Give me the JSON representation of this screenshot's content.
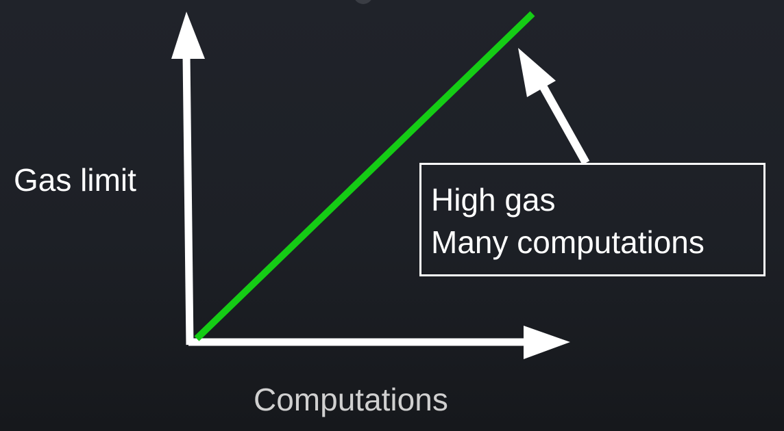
{
  "axes": {
    "y_label": "Gas limit",
    "x_label": "Computations"
  },
  "callout": {
    "line1": "High gas",
    "line2": "Many computations"
  },
  "colors": {
    "background": "#1e2127",
    "axis": "#ffffff",
    "trend_line": "#15cc15",
    "text": "#ffffff",
    "x_label_text": "#d0d0d0"
  }
}
